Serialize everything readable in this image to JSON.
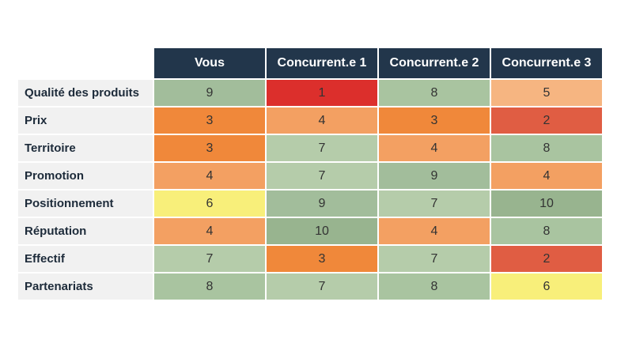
{
  "columns": [
    "Vous",
    "Concurrent.e 1",
    "Concurrent.e 2",
    "Concurrent.e 3"
  ],
  "rows": [
    {
      "label": "Qualité des produits",
      "values": [
        "9",
        "1",
        "8",
        "5"
      ]
    },
    {
      "label": "Prix",
      "values": [
        "3",
        "4",
        "3",
        "2"
      ]
    },
    {
      "label": "Territoire",
      "values": [
        "3",
        "7",
        "4",
        "8"
      ]
    },
    {
      "label": "Promotion",
      "values": [
        "4",
        "7",
        "9",
        "4"
      ]
    },
    {
      "label": "Positionnement",
      "values": [
        "6",
        "9",
        "7",
        "10"
      ]
    },
    {
      "label": "Réputation",
      "values": [
        "4",
        "10",
        "4",
        "8"
      ]
    },
    {
      "label": "Effectif",
      "values": [
        "7",
        "3",
        "7",
        "2"
      ]
    },
    {
      "label": "Partenariats",
      "values": [
        "8",
        "7",
        "8",
        "6"
      ]
    }
  ],
  "colors": {
    "header_bg": "#22364b",
    "1": "#dc2f2c",
    "2": "#e05d43",
    "3": "#f0883a",
    "4": "#f3a062",
    "5": "#f6b581",
    "6": "#f8ef7a",
    "7": "#b5ccaa",
    "8": "#a9c4a0",
    "9": "#a2bd9b",
    "10": "#98b48f"
  }
}
